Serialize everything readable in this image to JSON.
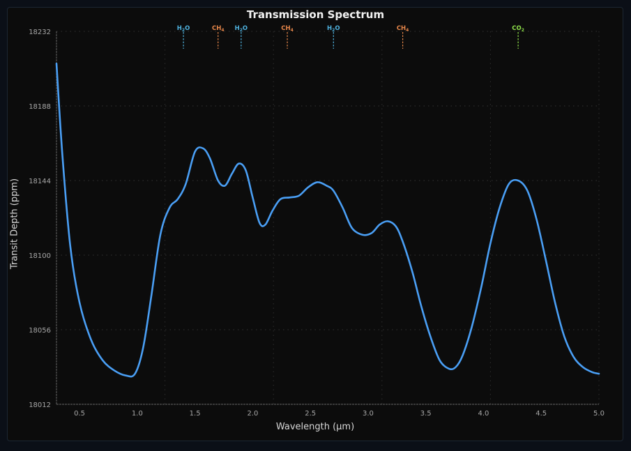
{
  "chart_data": {
    "type": "line",
    "title": "Transmission Spectrum",
    "xlabel": "Wavelength (μm)",
    "ylabel": "Transit Depth (ppm)",
    "xlim": [
      0.3,
      5.0
    ],
    "ylim": [
      18012,
      18232
    ],
    "xticks": [
      0.5,
      1.0,
      1.5,
      2.0,
      2.5,
      3.0,
      3.5,
      4.0,
      4.5,
      5.0
    ],
    "xtick_labels": [
      "0.5",
      "1.0",
      "1.5",
      "2.0",
      "2.5",
      "3.0",
      "3.5",
      "4.0",
      "4.5",
      "5.0"
    ],
    "yticks": [
      18012,
      18056,
      18100,
      18144,
      18188,
      18232
    ],
    "ytick_labels": [
      "18012",
      "18056",
      "18100",
      "18144",
      "18188",
      "18232"
    ],
    "grid": true,
    "line_color": "#4a9ff5",
    "series": [
      {
        "name": "Transit Depth",
        "x": [
          0.3,
          0.35,
          0.42,
          0.5,
          0.6,
          0.7,
          0.8,
          0.9,
          0.98,
          1.05,
          1.12,
          1.2,
          1.28,
          1.35,
          1.42,
          1.5,
          1.57,
          1.63,
          1.7,
          1.76,
          1.82,
          1.88,
          1.94,
          2.0,
          2.06,
          2.11,
          2.17,
          2.24,
          2.32,
          2.4,
          2.48,
          2.56,
          2.64,
          2.7,
          2.78,
          2.86,
          2.95,
          3.03,
          3.1,
          3.17,
          3.24,
          3.3,
          3.38,
          3.46,
          3.54,
          3.62,
          3.7,
          3.76,
          3.82,
          3.9,
          3.98,
          4.06,
          4.14,
          4.22,
          4.3,
          4.38,
          4.46,
          4.54,
          4.62,
          4.7,
          4.78,
          4.86,
          4.94,
          5.0
        ],
        "values": [
          18213,
          18160,
          18105,
          18072,
          18050,
          18038,
          18032,
          18029,
          18030,
          18045,
          18075,
          18112,
          18128,
          18133,
          18142,
          18161,
          18163,
          18157,
          18144,
          18141,
          18148,
          18154,
          18150,
          18134,
          18119,
          18118,
          18126,
          18133,
          18134,
          18135,
          18140,
          18143,
          18141,
          18138,
          18128,
          18116,
          18112,
          18113,
          18118,
          18120,
          18117,
          18108,
          18091,
          18070,
          18052,
          18038,
          18033,
          18034,
          18041,
          18058,
          18081,
          18107,
          18128,
          18142,
          18144,
          18138,
          18121,
          18097,
          18072,
          18052,
          18040,
          18034,
          18031,
          18030
        ]
      }
    ],
    "annotations": [
      {
        "molecule": "H₂O",
        "base": "H",
        "sub": "2",
        "tail": "O",
        "x": 1.4,
        "color": "#4fb3e0"
      },
      {
        "molecule": "CH₄",
        "base": "CH",
        "sub": "4",
        "tail": "",
        "x": 1.7,
        "color": "#e8874a"
      },
      {
        "molecule": "H₂O",
        "base": "H",
        "sub": "2",
        "tail": "O",
        "x": 1.9,
        "color": "#4fb3e0"
      },
      {
        "molecule": "CH₄",
        "base": "CH",
        "sub": "4",
        "tail": "",
        "x": 2.3,
        "color": "#e8874a"
      },
      {
        "molecule": "H₂O",
        "base": "H",
        "sub": "2",
        "tail": "O",
        "x": 2.7,
        "color": "#4fb3e0"
      },
      {
        "molecule": "CH₄",
        "base": "CH",
        "sub": "4",
        "tail": "",
        "x": 3.3,
        "color": "#e8874a"
      },
      {
        "molecule": "CO₂",
        "base": "CO",
        "sub": "2",
        "tail": "",
        "x": 4.3,
        "color": "#8fe04a"
      }
    ]
  }
}
